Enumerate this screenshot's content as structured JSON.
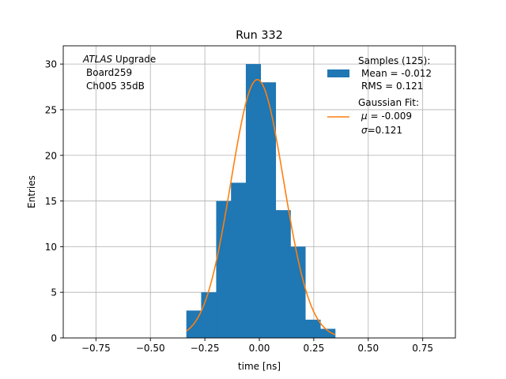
{
  "chart_data": {
    "type": "bar",
    "title": "Run 332",
    "xlabel": "time [ns]",
    "ylabel": "Entries",
    "xlim": [
      -0.9,
      0.9
    ],
    "ylim": [
      0,
      32
    ],
    "xticks": [
      -0.75,
      -0.5,
      -0.25,
      0.0,
      0.25,
      0.5,
      0.75
    ],
    "xtick_labels": [
      "−0.75",
      "−0.50",
      "−0.25",
      "0.00",
      "0.25",
      "0.50",
      "0.75"
    ],
    "yticks": [
      0,
      5,
      10,
      15,
      20,
      25,
      30
    ],
    "ytick_labels": [
      "0",
      "5",
      "10",
      "15",
      "20",
      "25",
      "30"
    ],
    "grid": true,
    "legend_position": "top-right",
    "annotation": {
      "line1_italic": "ATLAS",
      "line1_rest": " Upgrade",
      "line2": "Board259",
      "line3": "Ch005 35dB"
    },
    "histogram": {
      "bin_edges": [
        -0.335,
        -0.267,
        -0.198,
        -0.13,
        -0.062,
        0.006,
        0.075,
        0.143,
        0.211,
        0.28,
        0.348
      ],
      "counts": [
        3,
        5,
        15,
        17,
        30,
        28,
        14,
        10,
        2,
        1
      ],
      "color": "#1f77b4"
    },
    "fit": {
      "mu": -0.009,
      "sigma": 0.121,
      "amplitude": 28.3,
      "x_range": [
        -0.335,
        0.348
      ],
      "color": "#ff7f0e"
    },
    "legend": {
      "samples": {
        "line1": "Samples (125):",
        "line2": "Mean = -0.012",
        "line3": "RMS = 0.121"
      },
      "fit": {
        "line1": "Gaussian Fit:",
        "line2_symbol": "μ",
        "line2_rest": " = -0.009",
        "line3_symbol": "σ",
        "line3_rest": "=0.121"
      }
    }
  }
}
